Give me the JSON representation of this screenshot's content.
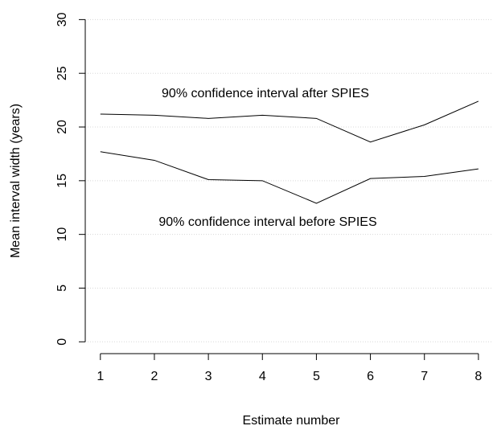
{
  "chart_data": {
    "type": "line",
    "x_label": "Estimate number",
    "y_label": "Mean interval width (years)",
    "x": [
      1,
      2,
      3,
      4,
      5,
      6,
      7,
      8
    ],
    "series": [
      {
        "name": "90% confidence interval after SPIES",
        "color": "#000000",
        "values": [
          21.2,
          21.1,
          20.8,
          21.1,
          20.8,
          18.6,
          20.2,
          22.4
        ]
      },
      {
        "name": "90% confidence interval before SPIES",
        "color": "#000000",
        "values": [
          17.7,
          16.9,
          15.1,
          15.0,
          12.9,
          15.2,
          15.4,
          16.1
        ]
      }
    ],
    "xlim": [
      0.72,
      8.24
    ],
    "xticks": [
      1,
      2,
      3,
      4,
      5,
      6,
      7,
      8
    ],
    "ylim": [
      -1.1,
      31.6
    ],
    "yticks": [
      0,
      5,
      10,
      15,
      20,
      25,
      30
    ],
    "grid": true
  }
}
